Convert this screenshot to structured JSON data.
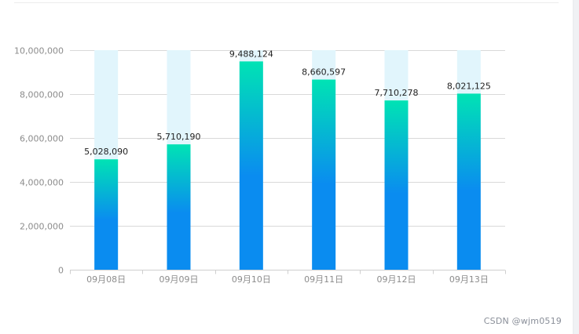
{
  "chart_data": {
    "type": "bar",
    "categories": [
      "09月08日",
      "09月09日",
      "09月10日",
      "09月11日",
      "09月12日",
      "09月13日"
    ],
    "values": [
      5028090,
      5710190,
      9488124,
      8660597,
      7710278,
      8021125
    ],
    "value_labels": [
      "5,028,090",
      "5,710,190",
      "9,488,124",
      "8,660,597",
      "7,710,278",
      "8,021,125"
    ],
    "background_value": 10000000,
    "ylim": [
      0,
      10000000
    ],
    "yticks": [
      0,
      2000000,
      4000000,
      6000000,
      8000000,
      10000000
    ],
    "ytick_labels": [
      "0",
      "2,000,000",
      "4,000,000",
      "6,000,000",
      "8,000,000",
      "10,000,000"
    ],
    "grid": true,
    "title": "",
    "xlabel": "",
    "ylabel": "",
    "colors": {
      "bar_top": "#00e3b4",
      "bar_bottom": "#0a8cf0",
      "bar_background": "#e1f5fc",
      "grid": "#d9d9d9",
      "axis": "#cfcfcf"
    }
  },
  "watermark": "CSDN @wjm0519"
}
